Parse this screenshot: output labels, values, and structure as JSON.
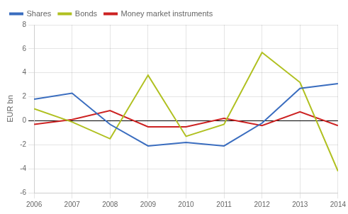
{
  "chart_data": {
    "type": "line",
    "ylabel": "EUR bn",
    "x": [
      2006,
      2007,
      2008,
      2009,
      2010,
      2011,
      2012,
      2013,
      2014
    ],
    "series": [
      {
        "name": "Shares",
        "color": "#3a6dbf",
        "values": [
          1.8,
          2.3,
          -0.3,
          -2.1,
          -1.8,
          -2.1,
          -0.2,
          2.7,
          3.1
        ]
      },
      {
        "name": "Bonds",
        "color": "#b0c020",
        "values": [
          1.0,
          -0.1,
          -1.5,
          3.8,
          -1.3,
          -0.3,
          5.7,
          3.2,
          -4.2
        ]
      },
      {
        "name": "Money market instruments",
        "color": "#cc2222",
        "values": [
          -0.3,
          0.1,
          0.85,
          -0.5,
          -0.5,
          0.2,
          -0.4,
          0.75,
          -0.4
        ]
      }
    ],
    "xlim": [
      2006,
      2014
    ],
    "xticks": [
      2006,
      2007,
      2008,
      2009,
      2010,
      2011,
      2012,
      2013,
      2014
    ],
    "ylim": [
      -6,
      8
    ],
    "yticks": [
      -6,
      -4,
      -2,
      0,
      2,
      4,
      6,
      8
    ],
    "grid": true,
    "legend": "upper left"
  }
}
